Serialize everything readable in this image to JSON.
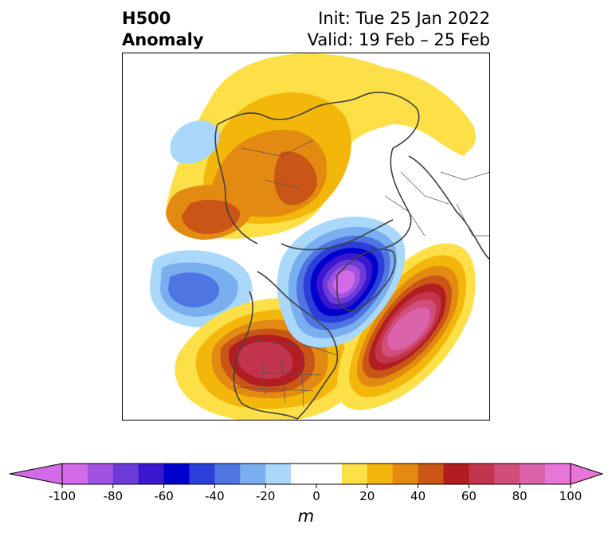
{
  "title": {
    "left_line1": "H500",
    "left_line2": "Anomaly",
    "right_line1": "Init: Tue 25 Jan 2022",
    "right_line2": "Valid: 19 Feb – 25 Feb"
  },
  "colorbar": {
    "unit": "m",
    "min": -100,
    "max": 100,
    "step": 10,
    "tick_labels": [
      "-100",
      "-80",
      "-60",
      "-40",
      "-20",
      "0",
      "20",
      "40",
      "60",
      "80",
      "100"
    ],
    "extend": "both",
    "colors": [
      "#d36be8",
      "#a152e0",
      "#6d3bd8",
      "#3b17d0",
      "#0000cd",
      "#2b3fd9",
      "#4f75e2",
      "#79aeef",
      "#a9d8fa",
      "#ffffff",
      "#ffffff",
      "#fde047",
      "#f3b70b",
      "#e38a12",
      "#c95516",
      "#b11d21",
      "#c3344d",
      "#d14d7a",
      "#da63a9",
      "#e875d8"
    ]
  },
  "map": {
    "projection": "north-polar-stereographic",
    "features": [
      {
        "name": "anomaly-positive-eastern-pacific-west-us",
        "peak_m": 70,
        "color": "#c3344d"
      },
      {
        "name": "anomaly-positive-north-atlantic",
        "peak_m": 90,
        "color": "#e875d8"
      },
      {
        "name": "anomaly-negative-canada-greenland",
        "peak_m": -100,
        "color": "#d36be8"
      },
      {
        "name": "anomaly-negative-north-pacific",
        "peak_m": -40,
        "color": "#4f75e2"
      },
      {
        "name": "anomaly-positive-siberia-arctic",
        "peak_m": 50,
        "color": "#c95516"
      }
    ]
  }
}
